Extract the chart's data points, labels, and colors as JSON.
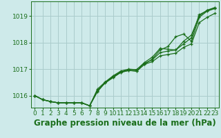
{
  "title": "Graphe pression niveau de la mer (hPa)",
  "bg_color": "#ceeaea",
  "grid_color": "#aacccc",
  "line_color": "#1a6e1a",
  "marker_color": "#1a6e1a",
  "xlim": [
    -0.5,
    23.5
  ],
  "ylim": [
    1015.55,
    1019.55
  ],
  "yticks": [
    1016,
    1017,
    1018,
    1019
  ],
  "xticks": [
    0,
    1,
    2,
    3,
    4,
    5,
    6,
    7,
    8,
    9,
    10,
    11,
    12,
    13,
    14,
    15,
    16,
    17,
    18,
    19,
    20,
    21,
    22,
    23
  ],
  "series": [
    [
      1016.0,
      1015.85,
      1015.78,
      1015.73,
      1015.73,
      1015.73,
      1015.73,
      1015.62,
      1016.2,
      1016.5,
      1016.7,
      1016.88,
      1016.95,
      1016.93,
      1017.18,
      1017.28,
      1017.5,
      1017.55,
      1017.6,
      1017.82,
      1017.95,
      1018.75,
      1018.95,
      1019.1
    ],
    [
      1016.0,
      1015.85,
      1015.78,
      1015.73,
      1015.73,
      1015.73,
      1015.73,
      1015.62,
      1016.15,
      1016.5,
      1016.72,
      1016.9,
      1016.98,
      1016.98,
      1017.22,
      1017.35,
      1017.62,
      1017.68,
      1017.72,
      1017.95,
      1018.18,
      1019.05,
      1019.2,
      1019.3
    ],
    [
      1016.0,
      1015.85,
      1015.78,
      1015.73,
      1015.73,
      1015.73,
      1015.73,
      1015.62,
      1016.18,
      1016.48,
      1016.68,
      1016.88,
      1016.95,
      1016.92,
      1017.18,
      1017.38,
      1017.72,
      1017.85,
      1018.22,
      1018.32,
      1018.05,
      1018.95,
      1019.18,
      1019.28
    ],
    [
      1016.0,
      1015.85,
      1015.78,
      1015.73,
      1015.73,
      1015.73,
      1015.73,
      1015.62,
      1016.25,
      1016.52,
      1016.75,
      1016.93,
      1017.0,
      1016.98,
      1017.25,
      1017.45,
      1017.78,
      1017.75,
      1017.72,
      1018.05,
      1018.28,
      1019.0,
      1019.22,
      1019.32
    ]
  ],
  "title_fontsize": 8.5,
  "tick_fontsize": 6.5
}
